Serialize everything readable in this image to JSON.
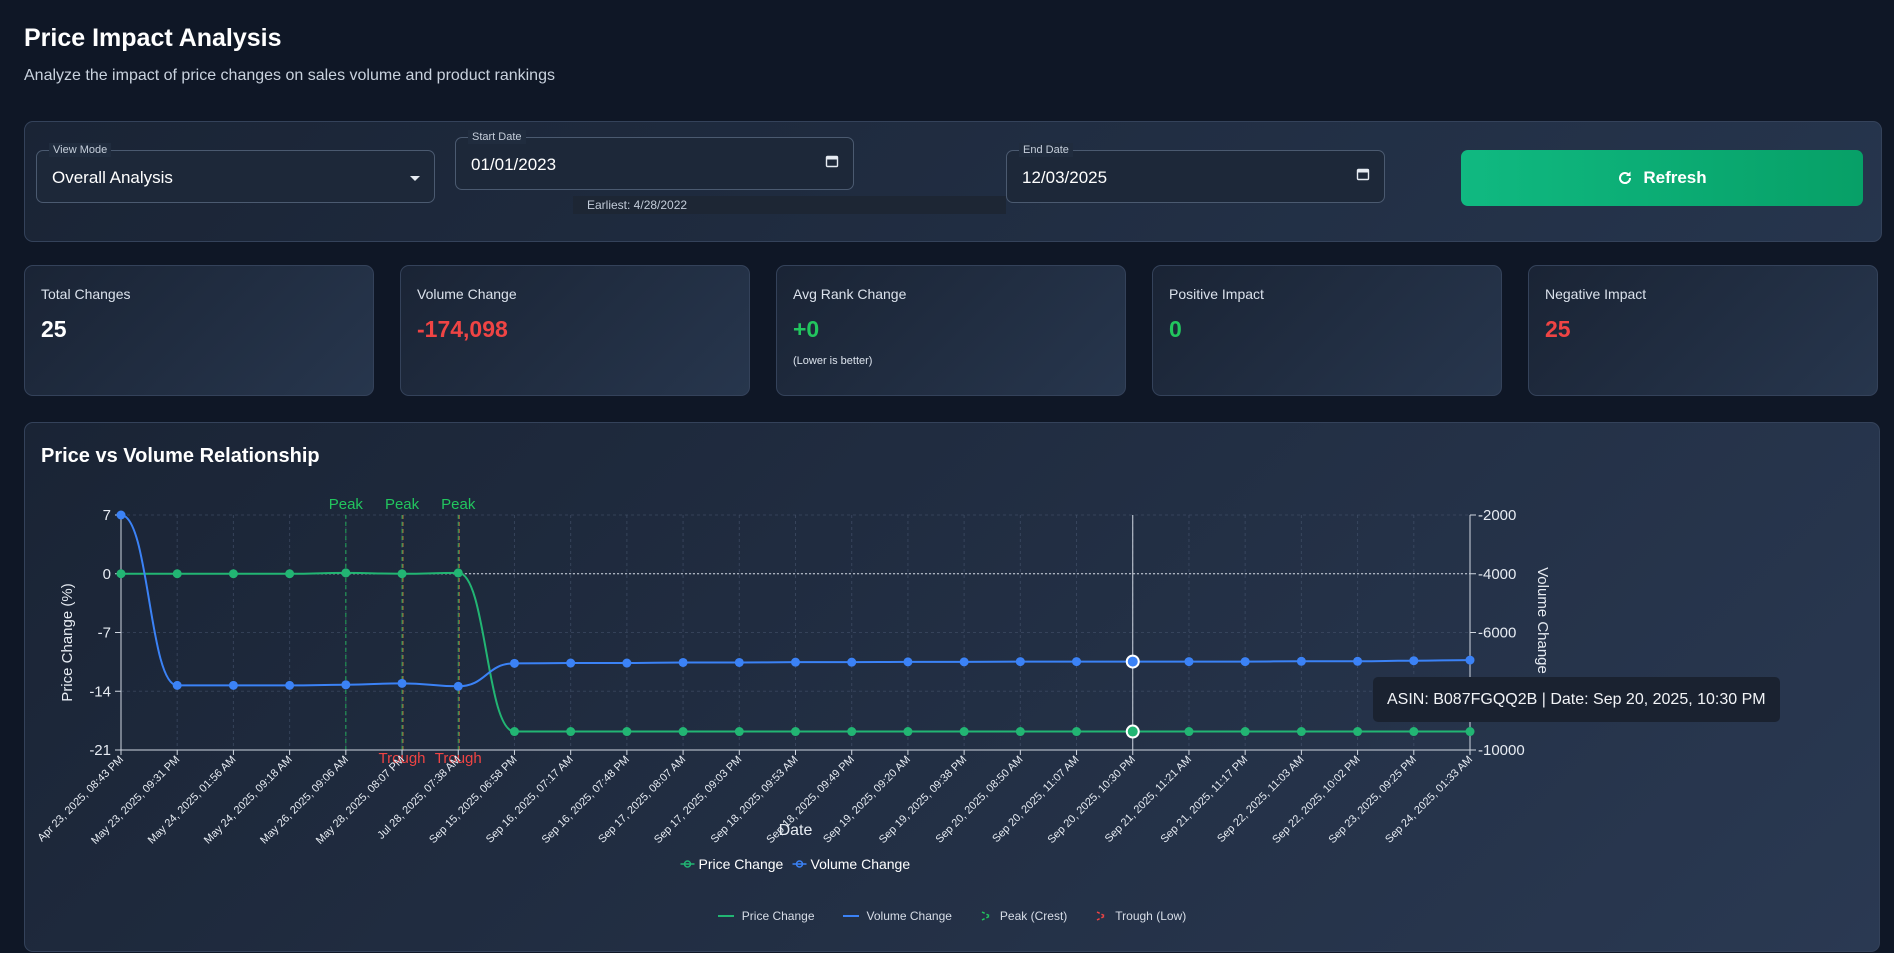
{
  "header": {
    "title": "Price Impact Analysis",
    "subtitle": "Analyze the impact of price changes on sales volume and product rankings"
  },
  "controls": {
    "view_mode": {
      "label": "View Mode",
      "value": "Overall Analysis"
    },
    "start_date": {
      "label": "Start Date",
      "value": "01/01/2023",
      "hint": "Earliest: 4/28/2022"
    },
    "end_date": {
      "label": "End Date",
      "value": "12/03/2025"
    },
    "refresh_label": "Refresh"
  },
  "stats": [
    {
      "label": "Total Changes",
      "value": "25",
      "color": "#ffffff"
    },
    {
      "label": "Volume Change",
      "value": "-174,098",
      "color": "#ef4444"
    },
    {
      "label": "Avg Rank Change",
      "value": "+0",
      "color": "#22c55e",
      "note": "(Lower is better)"
    },
    {
      "label": "Positive Impact",
      "value": "0",
      "color": "#22c55e"
    },
    {
      "label": "Negative Impact",
      "value": "25",
      "color": "#ef4444"
    }
  ],
  "chart_title": "Price vs Volume Relationship",
  "tooltip": "ASIN: B087FGQQ2B | Date: Sep 20, 2025, 10:30 PM",
  "bottom_legend": {
    "price": "Price Change",
    "volume": "Volume Change",
    "peak": "Peak (Crest)",
    "trough": "Trough (Low)"
  },
  "colors": {
    "price": "#22b573",
    "volume": "#3b82f6",
    "peak": "#22c55e",
    "trough": "#ef4444",
    "positive": "#22c55e",
    "negative": "#ef4444"
  },
  "chart_data": {
    "type": "line",
    "xlabel": "Date",
    "ylabel_left": "Price Change (%)",
    "ylabel_right": "Volume Change",
    "y_left_ticks": [
      7,
      0,
      -7,
      -14,
      -21
    ],
    "y_right_ticks": [
      -2000,
      -4000,
      -6000,
      -8000,
      -10000
    ],
    "y_left_range": [
      -21,
      7
    ],
    "y_right_range": [
      -10000,
      -2000
    ],
    "x": [
      "Apr 23, 2025, 08:43 PM",
      "May 23, 2025, 09:31 PM",
      "May 24, 2025, 01:56 AM",
      "May 24, 2025, 09:18 AM",
      "May 26, 2025, 09:06 AM",
      "May 28, 2025, 08:07 PM",
      "Jul 28, 2025, 07:38 AM",
      "Sep 15, 2025, 06:58 PM",
      "Sep 16, 2025, 07:17 AM",
      "Sep 16, 2025, 07:48 PM",
      "Sep 17, 2025, 08:07 AM",
      "Sep 17, 2025, 09:03 PM",
      "Sep 18, 2025, 09:53 AM",
      "Sep 18, 2025, 09:49 PM",
      "Sep 19, 2025, 09:20 AM",
      "Sep 19, 2025, 09:38 PM",
      "Sep 20, 2025, 08:50 AM",
      "Sep 20, 2025, 11:07 AM",
      "Sep 20, 2025, 10:30 PM",
      "Sep 21, 2025, 11:21 AM",
      "Sep 21, 2025, 11:17 PM",
      "Sep 22, 2025, 11:03 AM",
      "Sep 22, 2025, 10:02 PM",
      "Sep 23, 2025, 09:25 PM",
      "Sep 24, 2025, 01:33 AM"
    ],
    "series": [
      {
        "name": "Price Change",
        "axis": "left",
        "values": [
          0,
          0,
          0,
          0,
          0.1,
          0,
          0.1,
          -18.8,
          -18.8,
          -18.8,
          -18.8,
          -18.8,
          -18.8,
          -18.8,
          -18.8,
          -18.8,
          -18.8,
          -18.8,
          -18.8,
          -18.8,
          -18.8,
          -18.8,
          -18.8,
          -18.8,
          -18.8
        ]
      },
      {
        "name": "Volume Change",
        "axis": "right",
        "values": [
          -2000,
          -7800,
          -7800,
          -7800,
          -7780,
          -7730,
          -7830,
          -7050,
          -7040,
          -7040,
          -7020,
          -7020,
          -7010,
          -7010,
          -7000,
          -7000,
          -6990,
          -6990,
          -6990,
          -6990,
          -6990,
          -6980,
          -6980,
          -6960,
          -6940
        ]
      }
    ],
    "peaks": [
      4,
      5,
      6
    ],
    "troughs": [
      5,
      6
    ],
    "peak_label": "Peak",
    "trough_label": "Trough",
    "highlight_index": 18,
    "zero_line": true,
    "legend": [
      "Price Change",
      "Volume Change"
    ]
  }
}
